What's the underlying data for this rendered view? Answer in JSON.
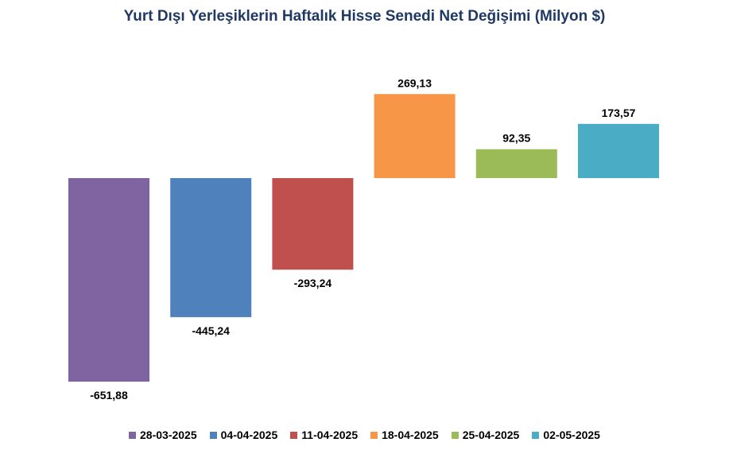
{
  "chart_data": {
    "type": "bar",
    "title": "Yurt Dışı Yerleşiklerin Haftalık Hisse Senedi Net Değişimi (Milyon $)",
    "categories": [
      "28-03-2025",
      "04-04-2025",
      "11-04-2025",
      "18-04-2025",
      "25-04-2025",
      "02-05-2025"
    ],
    "values": [
      -651.88,
      -445.24,
      -293.24,
      269.13,
      92.35,
      173.57
    ],
    "value_labels": [
      "-651,88",
      "-445,24",
      "-293,24",
      "269,13",
      "92,35",
      "173,57"
    ],
    "colors": [
      "#8064a2",
      "#4f81bd",
      "#c0504d",
      "#f79646",
      "#9bbb59",
      "#4bacc6"
    ],
    "xlabel": "",
    "ylabel": "",
    "grid": false,
    "legend_position": "bottom"
  }
}
